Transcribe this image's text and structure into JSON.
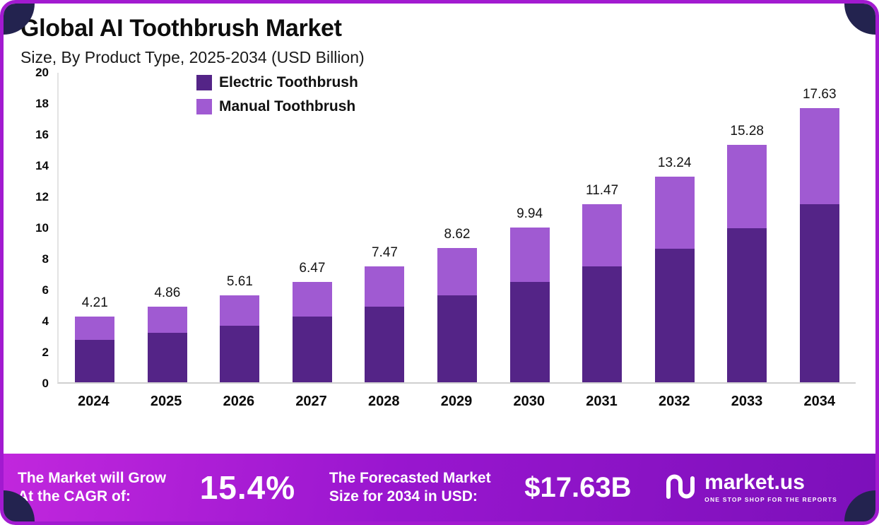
{
  "header": {
    "title": "Global AI Toothbrush Market",
    "subtitle": "Size, By Product Type, 2025-2034 (USD Billion)"
  },
  "chart_data": {
    "type": "bar",
    "stacked": true,
    "title": "Global AI Toothbrush Market Size, By Product Type, 2025-2034 (USD Billion)",
    "categories": [
      "2024",
      "2025",
      "2026",
      "2027",
      "2028",
      "2029",
      "2030",
      "2031",
      "2032",
      "2033",
      "2034"
    ],
    "series": [
      {
        "name": "Electric Toothbrush",
        "color": "#542487",
        "values": [
          2.74,
          3.16,
          3.65,
          4.21,
          4.86,
          5.6,
          6.46,
          7.46,
          8.61,
          9.93,
          11.46
        ]
      },
      {
        "name": "Manual Toothbrush",
        "color": "#a05ad2",
        "values": [
          1.47,
          1.7,
          1.96,
          2.26,
          2.61,
          3.02,
          3.48,
          4.01,
          4.63,
          5.35,
          6.17
        ]
      }
    ],
    "totals": [
      4.21,
      4.86,
      5.61,
      6.47,
      7.47,
      8.62,
      9.94,
      11.47,
      13.24,
      15.28,
      17.63
    ],
    "xlabel": "",
    "ylabel": "",
    "ylim": [
      0,
      20
    ],
    "ytick_step": 2,
    "grid": false,
    "legend_position": "top-left-inside"
  },
  "footer": {
    "cagr_label": "The Market will Grow\nAt the CAGR of:",
    "cagr_value": "15.4%",
    "forecast_label": "The Forecasted Market\nSize for 2034 in USD:",
    "forecast_value": "$17.63B",
    "brand": {
      "name": "market.us",
      "tagline": "One Stop Shop for the Reports"
    }
  },
  "colors": {
    "frame_border": "#a21ad0",
    "corner_accent": "#23234f",
    "electric": "#542487",
    "manual": "#a05ad2",
    "banner_gradient_start": "#c127dd",
    "banner_gradient_end": "#7c10ba"
  }
}
